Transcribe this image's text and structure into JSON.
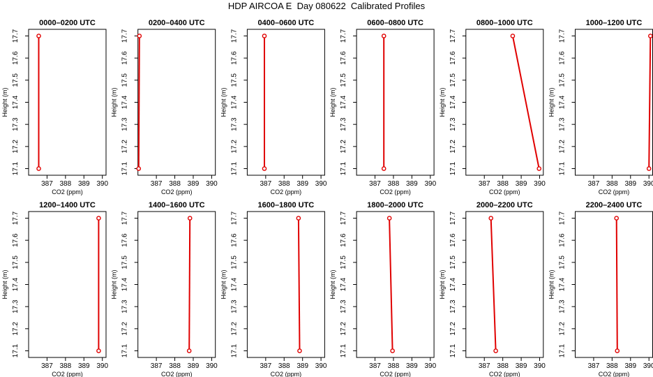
{
  "title": "HDP AIRCOA E  Day 080622  Calibrated Profiles",
  "chart_data": [
    {
      "type": "line",
      "title": "0000–0200 UTC",
      "xlabel": "CO2 (ppm)",
      "ylabel": "Height (m)",
      "xlim": [
        386.0,
        390.2
      ],
      "ylim": [
        17.07,
        17.73
      ],
      "xticks": [
        387,
        388,
        389,
        390
      ],
      "yticks": [
        17.1,
        17.2,
        17.3,
        17.4,
        17.5,
        17.6,
        17.7
      ],
      "points": [
        {
          "x": 386.55,
          "y": 17.1
        },
        {
          "x": 386.55,
          "y": 17.7
        }
      ]
    },
    {
      "type": "line",
      "title": "0200–0400 UTC",
      "xlabel": "CO2 (ppm)",
      "ylabel": "Height (m)",
      "xlim": [
        386.0,
        390.2
      ],
      "ylim": [
        17.07,
        17.73
      ],
      "xticks": [
        387,
        388,
        389,
        390
      ],
      "yticks": [
        17.1,
        17.2,
        17.3,
        17.4,
        17.5,
        17.6,
        17.7
      ],
      "points": [
        {
          "x": 386.04,
          "y": 17.1
        },
        {
          "x": 386.08,
          "y": 17.7
        }
      ]
    },
    {
      "type": "line",
      "title": "0400–0600 UTC",
      "xlabel": "CO2 (ppm)",
      "ylabel": "Height (m)",
      "xlim": [
        386.0,
        390.2
      ],
      "ylim": [
        17.07,
        17.73
      ],
      "xticks": [
        387,
        388,
        389,
        390
      ],
      "yticks": [
        17.1,
        17.2,
        17.3,
        17.4,
        17.5,
        17.6,
        17.7
      ],
      "points": [
        {
          "x": 386.93,
          "y": 17.1
        },
        {
          "x": 386.93,
          "y": 17.7
        }
      ]
    },
    {
      "type": "line",
      "title": "0600–0800 UTC",
      "xlabel": "CO2 (ppm)",
      "ylabel": "Height (m)",
      "xlim": [
        386.0,
        390.2
      ],
      "ylim": [
        17.07,
        17.73
      ],
      "xticks": [
        387,
        388,
        389,
        390
      ],
      "yticks": [
        17.1,
        17.2,
        17.3,
        17.4,
        17.5,
        17.6,
        17.7
      ],
      "points": [
        {
          "x": 387.48,
          "y": 17.1
        },
        {
          "x": 387.48,
          "y": 17.7
        }
      ]
    },
    {
      "type": "line",
      "title": "0800–1000 UTC",
      "xlabel": "CO2 (ppm)",
      "ylabel": "Height (m)",
      "xlim": [
        386.0,
        390.2
      ],
      "ylim": [
        17.07,
        17.73
      ],
      "xticks": [
        387,
        388,
        389,
        390
      ],
      "yticks": [
        17.1,
        17.2,
        17.3,
        17.4,
        17.5,
        17.6,
        17.7
      ],
      "points": [
        {
          "x": 389.97,
          "y": 17.1
        },
        {
          "x": 388.54,
          "y": 17.7
        }
      ]
    },
    {
      "type": "line",
      "title": "1000–1200 UTC",
      "xlabel": "CO2 (ppm)",
      "ylabel": "Height (m)",
      "xlim": [
        386.0,
        390.2
      ],
      "ylim": [
        17.07,
        17.73
      ],
      "xticks": [
        387,
        388,
        389,
        390
      ],
      "yticks": [
        17.1,
        17.2,
        17.3,
        17.4,
        17.5,
        17.6,
        17.7
      ],
      "points": [
        {
          "x": 390.0,
          "y": 17.1
        },
        {
          "x": 390.08,
          "y": 17.7
        }
      ]
    },
    {
      "type": "line",
      "title": "1200–1400 UTC",
      "xlabel": "CO2 (ppm)",
      "ylabel": "Height (m)",
      "xlim": [
        386.0,
        390.2
      ],
      "ylim": [
        17.07,
        17.73
      ],
      "xticks": [
        387,
        388,
        389,
        390
      ],
      "yticks": [
        17.1,
        17.2,
        17.3,
        17.4,
        17.5,
        17.6,
        17.7
      ],
      "points": [
        {
          "x": 389.8,
          "y": 17.1
        },
        {
          "x": 389.8,
          "y": 17.7
        }
      ]
    },
    {
      "type": "line",
      "title": "1400–1600 UTC",
      "xlabel": "CO2 (ppm)",
      "ylabel": "Height (m)",
      "xlim": [
        386.0,
        390.2
      ],
      "ylim": [
        17.07,
        17.73
      ],
      "xticks": [
        387,
        388,
        389,
        390
      ],
      "yticks": [
        17.1,
        17.2,
        17.3,
        17.4,
        17.5,
        17.6,
        17.7
      ],
      "points": [
        {
          "x": 388.78,
          "y": 17.1
        },
        {
          "x": 388.82,
          "y": 17.7
        }
      ]
    },
    {
      "type": "line",
      "title": "1600–1800 UTC",
      "xlabel": "CO2 (ppm)",
      "ylabel": "Height (m)",
      "xlim": [
        386.0,
        390.2
      ],
      "ylim": [
        17.07,
        17.73
      ],
      "xticks": [
        387,
        388,
        389,
        390
      ],
      "yticks": [
        17.1,
        17.2,
        17.3,
        17.4,
        17.5,
        17.6,
        17.7
      ],
      "points": [
        {
          "x": 388.84,
          "y": 17.1
        },
        {
          "x": 388.78,
          "y": 17.7
        }
      ]
    },
    {
      "type": "line",
      "title": "1800–2000 UTC",
      "xlabel": "CO2 (ppm)",
      "ylabel": "Height (m)",
      "xlim": [
        386.0,
        390.2
      ],
      "ylim": [
        17.07,
        17.73
      ],
      "xticks": [
        387,
        388,
        389,
        390
      ],
      "yticks": [
        17.1,
        17.2,
        17.3,
        17.4,
        17.5,
        17.6,
        17.7
      ],
      "points": [
        {
          "x": 387.95,
          "y": 17.1
        },
        {
          "x": 387.78,
          "y": 17.7
        }
      ]
    },
    {
      "type": "line",
      "title": "2000–2200 UTC",
      "xlabel": "CO2 (ppm)",
      "ylabel": "Height (m)",
      "xlim": [
        386.0,
        390.2
      ],
      "ylim": [
        17.07,
        17.73
      ],
      "xticks": [
        387,
        388,
        389,
        390
      ],
      "yticks": [
        17.1,
        17.2,
        17.3,
        17.4,
        17.5,
        17.6,
        17.7
      ],
      "points": [
        {
          "x": 387.62,
          "y": 17.1
        },
        {
          "x": 387.36,
          "y": 17.7
        }
      ]
    },
    {
      "type": "line",
      "title": "2200–2400 UTC",
      "xlabel": "CO2 (ppm)",
      "ylabel": "Height (m)",
      "xlim": [
        386.0,
        390.2
      ],
      "ylim": [
        17.07,
        17.73
      ],
      "xticks": [
        387,
        388,
        389,
        390
      ],
      "yticks": [
        17.1,
        17.2,
        17.3,
        17.4,
        17.5,
        17.6,
        17.7
      ],
      "points": [
        {
          "x": 388.28,
          "y": 17.1
        },
        {
          "x": 388.24,
          "y": 17.7
        }
      ]
    }
  ],
  "colors": {
    "line": "#e00000",
    "marker": "#e00000",
    "axis": "#000000"
  }
}
